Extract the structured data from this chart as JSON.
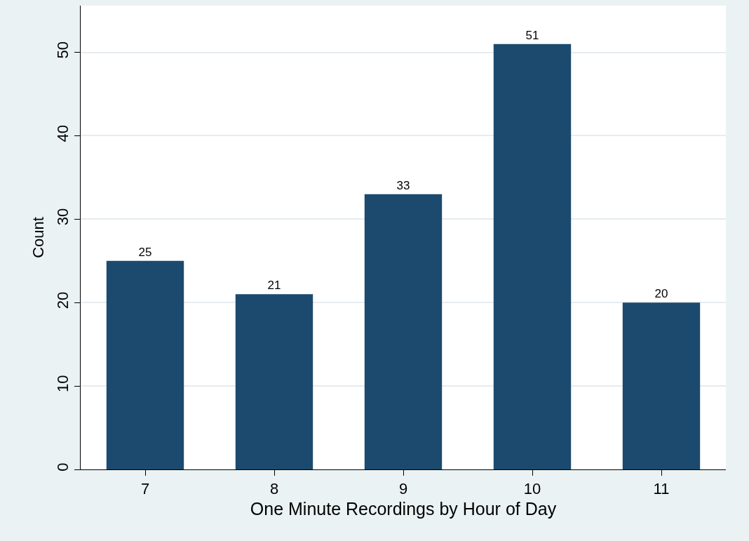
{
  "chart_data": {
    "type": "bar",
    "xlabel": "One Minute Recordings by Hour of Day",
    "ylabel": "Count",
    "categories": [
      "7",
      "8",
      "9",
      "10",
      "11"
    ],
    "values": [
      25,
      21,
      33,
      51,
      20
    ],
    "color": "#1c4a6e",
    "ylim": [
      0,
      55.6
    ],
    "yticks": [
      0,
      10,
      20,
      30,
      40,
      50
    ],
    "grid": "y",
    "data_labels": true
  }
}
